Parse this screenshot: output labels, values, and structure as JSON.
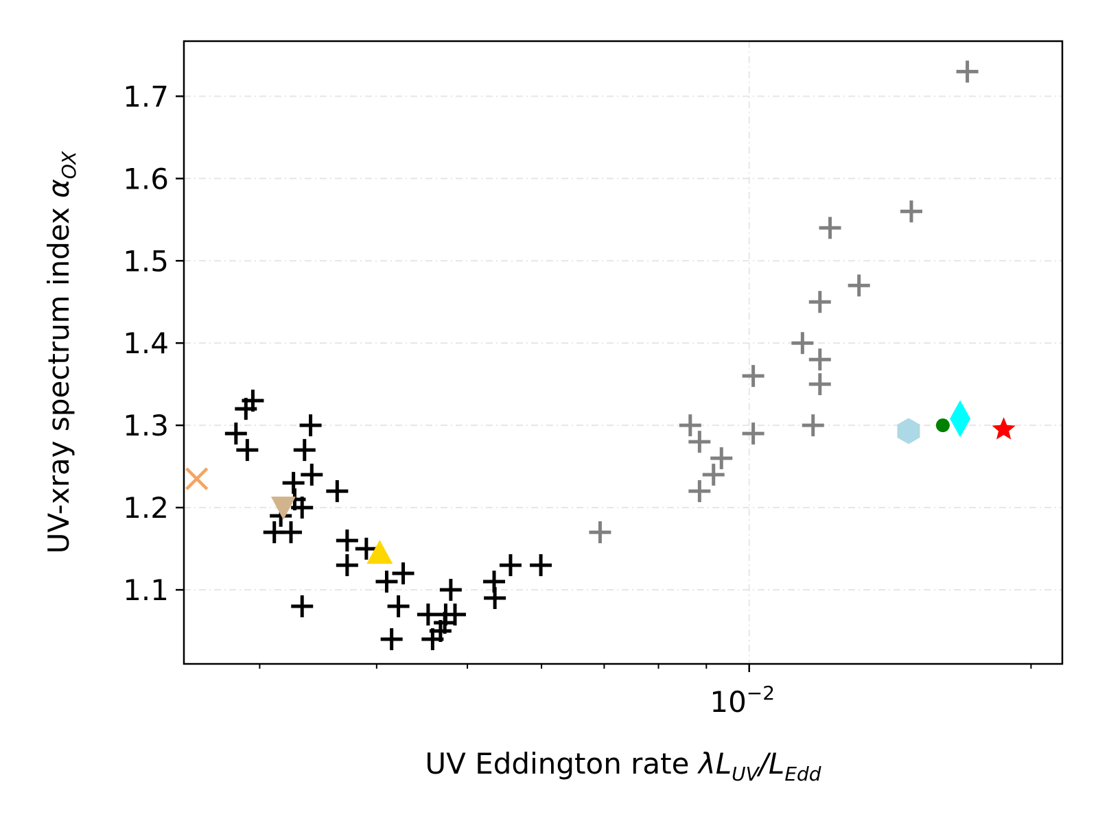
{
  "chart_data": {
    "type": "scatter",
    "title": "",
    "xlabel": "UV Eddington rate",
    "xlabel_math": [
      "λL",
      "UV",
      "/L",
      "Edd"
    ],
    "ylabel": "UV-xray spectrum index",
    "ylabel_math": [
      "α",
      "OX"
    ],
    "xscale": "log",
    "xlim": [
      0.00249,
      0.0216
    ],
    "ylim": [
      1.01,
      1.767
    ],
    "x_major_ticks": [
      {
        "value": 0.01,
        "base": "10",
        "exp": "−2"
      }
    ],
    "x_minor_ticks": [
      0.003,
      0.004,
      0.005,
      0.006,
      0.007,
      0.008,
      0.009,
      0.02
    ],
    "y_ticks": [
      1.1,
      1.2,
      1.3,
      1.4,
      1.5,
      1.6,
      1.7
    ],
    "y_tick_labels": [
      "1.1",
      "1.2",
      "1.3",
      "1.4",
      "1.5",
      "1.6",
      "1.7"
    ],
    "grid": true,
    "colors": {
      "black_cross": "#000000",
      "gray_cross": "#808080",
      "x_marker": "#f4a460",
      "triangle_down": "#d2b48c",
      "triangle_up": "#ffd700",
      "hexagon": "#add8e6",
      "circle": "#008000",
      "diamond": "#00ffff",
      "star": "#ff0000"
    },
    "series": [
      {
        "marker": "plus",
        "color": "#000000",
        "points": [
          [
            0.00295,
            1.33
          ],
          [
            0.0029,
            1.32
          ],
          [
            0.00283,
            1.29
          ],
          [
            0.00291,
            1.27
          ],
          [
            0.0034,
            1.3
          ],
          [
            0.00335,
            1.27
          ],
          [
            0.00341,
            1.24
          ],
          [
            0.00326,
            1.23
          ],
          [
            0.00333,
            1.2
          ],
          [
            0.00327,
            1.21
          ],
          [
            0.00316,
            1.19
          ],
          [
            0.00311,
            1.17
          ],
          [
            0.00324,
            1.17
          ],
          [
            0.00363,
            1.22
          ],
          [
            0.00372,
            1.16
          ],
          [
            0.00372,
            1.13
          ],
          [
            0.0039,
            1.15
          ],
          [
            0.0041,
            1.11
          ],
          [
            0.00427,
            1.12
          ],
          [
            0.00422,
            1.08
          ],
          [
            0.00333,
            1.08
          ],
          [
            0.00415,
            1.04
          ],
          [
            0.00454,
            1.07
          ],
          [
            0.00459,
            1.04
          ],
          [
            0.00468,
            1.05
          ],
          [
            0.00473,
            1.06
          ],
          [
            0.00485,
            1.07
          ],
          [
            0.00474,
            1.07
          ],
          [
            0.0048,
            1.1
          ],
          [
            0.00535,
            1.09
          ],
          [
            0.00534,
            1.11
          ],
          [
            0.00556,
            1.13
          ],
          [
            0.00599,
            1.13
          ]
        ]
      },
      {
        "marker": "plus",
        "color": "#808080",
        "points": [
          [
            0.0171,
            1.73
          ],
          [
            0.0149,
            1.56
          ],
          [
            0.0122,
            1.54
          ],
          [
            0.0131,
            1.47
          ],
          [
            0.0119,
            1.45
          ],
          [
            0.0114,
            1.4
          ],
          [
            0.0119,
            1.38
          ],
          [
            0.0119,
            1.35
          ],
          [
            0.0101,
            1.36
          ],
          [
            0.0117,
            1.3
          ],
          [
            0.00865,
            1.3
          ],
          [
            0.00885,
            1.28
          ],
          [
            0.00934,
            1.26
          ],
          [
            0.00916,
            1.24
          ],
          [
            0.00885,
            1.22
          ],
          [
            0.0101,
            1.29
          ],
          [
            0.00693,
            1.17
          ]
        ]
      },
      {
        "marker": "x",
        "color": "#f4a460",
        "points": [
          [
            0.00257,
            1.235
          ]
        ]
      },
      {
        "marker": "triangle-down",
        "color": "#d2b48c",
        "points": [
          [
            0.00318,
            1.2
          ]
        ]
      },
      {
        "marker": "triangle-up",
        "color": "#ffd700",
        "points": [
          [
            0.00403,
            1.145
          ]
        ]
      },
      {
        "marker": "hexagon",
        "color": "#add8e6",
        "points": [
          [
            0.0148,
            1.293
          ]
        ]
      },
      {
        "marker": "circle",
        "color": "#008000",
        "points": [
          [
            0.0161,
            1.3
          ]
        ]
      },
      {
        "marker": "diamond",
        "color": "#00ffff",
        "points": [
          [
            0.0168,
            1.308
          ]
        ]
      },
      {
        "marker": "star",
        "color": "#ff0000",
        "points": [
          [
            0.0187,
            1.295
          ]
        ]
      }
    ]
  }
}
